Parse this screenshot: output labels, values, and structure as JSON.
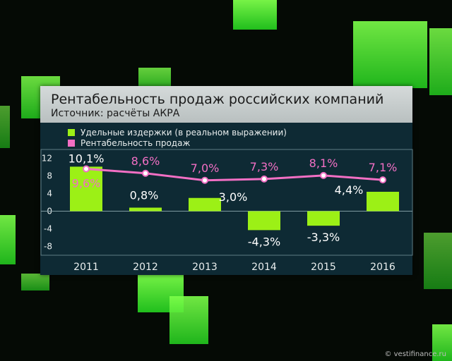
{
  "chart_data": {
    "type": "bar",
    "title": "Рентабельность продаж российских компаний",
    "subtitle": "Источник: расчёты АКРА",
    "categories": [
      "2011",
      "2012",
      "2013",
      "2014",
      "2015",
      "2016"
    ],
    "series": [
      {
        "name": "Удельные издержки (в реальном выражении)",
        "type": "bar",
        "color": "#9cf016",
        "values": [
          10.1,
          0.8,
          3.0,
          -4.3,
          -3.3,
          4.4
        ],
        "labels": [
          "10,1%",
          "0,8%",
          "3,0%",
          "-4,3%",
          "-3,3%",
          "4,4%"
        ]
      },
      {
        "name": "Рентабельность продаж",
        "type": "line",
        "color": "#f26fc4",
        "values": [
          9.6,
          8.6,
          7.0,
          7.3,
          8.1,
          7.1
        ],
        "labels": [
          "9,6%",
          "8,6%",
          "7,0%",
          "7,3%",
          "8,1%",
          "7,1%"
        ]
      }
    ],
    "yticks": [
      12,
      8,
      4,
      0,
      -4,
      -8
    ],
    "ylim": [
      -10,
      14
    ],
    "legend_position": "top-left",
    "grid": false
  },
  "watermark": "© vestifinance.ru"
}
